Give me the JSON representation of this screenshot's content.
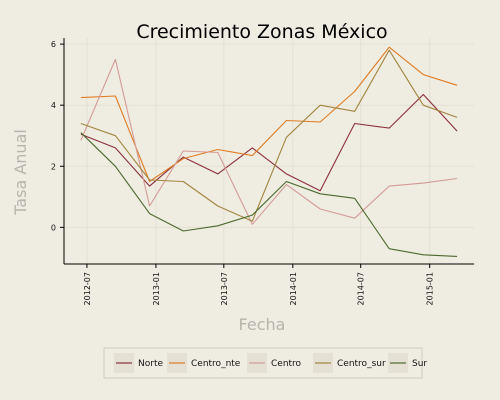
{
  "chart_data": {
    "type": "line",
    "title": "Crecimiento Zonas México",
    "xlabel": "Fecha",
    "ylabel": "Tasa Anual",
    "x": [
      "2012-06",
      "2012-09",
      "2012-12",
      "2013-03",
      "2013-06",
      "2013-09",
      "2013-12",
      "2014-03",
      "2014-06",
      "2014-09",
      "2014-12",
      "2015-03"
    ],
    "x_ticks": [
      "2012-07",
      "2013-01",
      "2013-07",
      "2014-01",
      "2014-07",
      "2015-01"
    ],
    "y_ticks": [
      0,
      2,
      4,
      6
    ],
    "ylim": [
      -1.2,
      6.2
    ],
    "grid": true,
    "legend_position": "bottom",
    "series": [
      {
        "name": "Norte",
        "color": "#8b2f3a",
        "values": [
          3.05,
          2.6,
          1.35,
          2.3,
          1.75,
          2.6,
          1.75,
          1.2,
          3.4,
          3.25,
          4.35,
          3.15
        ]
      },
      {
        "name": "Centro_nte",
        "color": "#e07b22",
        "values": [
          4.25,
          4.3,
          1.5,
          2.25,
          2.55,
          2.35,
          3.5,
          3.45,
          4.45,
          5.9,
          5.0,
          4.65
        ]
      },
      {
        "name": "Centro",
        "color": "#d49a96",
        "values": [
          2.85,
          5.5,
          0.7,
          2.5,
          2.45,
          0.1,
          1.4,
          0.6,
          0.3,
          1.35,
          1.45,
          1.6
        ]
      },
      {
        "name": "Centro_sur",
        "color": "#a2843e",
        "values": [
          3.4,
          3.0,
          1.55,
          1.5,
          0.7,
          0.2,
          2.95,
          4.0,
          3.8,
          5.8,
          4.0,
          3.6
        ]
      },
      {
        "name": "Sur",
        "color": "#4a6a2c",
        "values": [
          3.1,
          2.0,
          0.45,
          -0.12,
          0.05,
          0.4,
          1.5,
          1.1,
          0.95,
          -0.7,
          -0.9,
          -0.95
        ]
      }
    ]
  }
}
